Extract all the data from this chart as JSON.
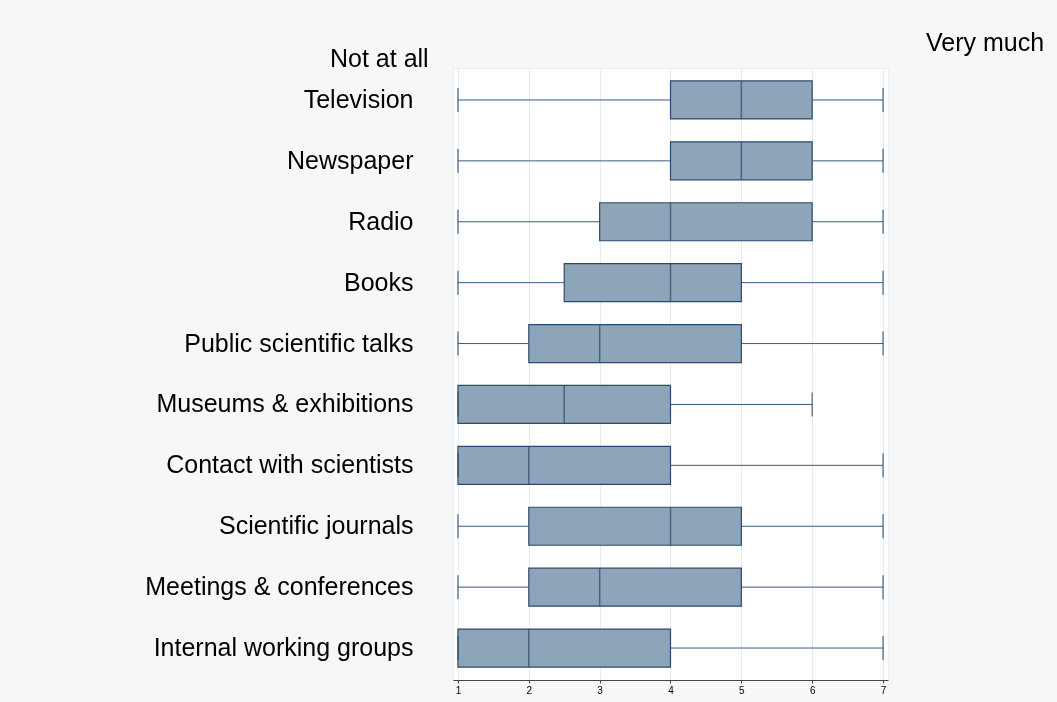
{
  "chart_data": {
    "type": "box",
    "orientation": "horizontal",
    "annotations": [
      "Not at all",
      "Very much"
    ],
    "categories": [
      "Television",
      "Newspaper",
      "Radio",
      "Books",
      "Public scientific talks",
      "Museums & exhibitions",
      "Contact with scientists",
      "Scientific journals",
      "Meetings & conferences",
      "Internal working groups"
    ],
    "series": [
      {
        "color": "#8ea4b9",
        "boxes": [
          {
            "low": 1,
            "q1": 4,
            "median": 5,
            "q3": 6,
            "high": 7
          },
          {
            "low": 1,
            "q1": 4,
            "median": 5,
            "q3": 6,
            "high": 7
          },
          {
            "low": 1,
            "q1": 3,
            "median": 4,
            "q3": 6,
            "high": 7
          },
          {
            "low": 1,
            "q1": 2.5,
            "median": 4,
            "q3": 5,
            "high": 7
          },
          {
            "low": 1,
            "q1": 2,
            "median": 3,
            "q3": 5,
            "high": 7
          },
          {
            "low": 1,
            "q1": 1,
            "median": 2.5,
            "q3": 4,
            "high": 6
          },
          {
            "low": 1,
            "q1": 1,
            "median": 2,
            "q3": 4,
            "high": 7
          },
          {
            "low": 1,
            "q1": 2,
            "median": 4,
            "q3": 5,
            "high": 7
          },
          {
            "low": 1,
            "q1": 2,
            "median": 3,
            "q3": 5,
            "high": 7
          },
          {
            "low": 1,
            "q1": 1,
            "median": 2,
            "q3": 4,
            "high": 7
          }
        ]
      }
    ],
    "xlim": [
      0.93,
      7.07
    ],
    "xticks": [
      1,
      2,
      3,
      4,
      5,
      6,
      7
    ],
    "grid": "x"
  }
}
